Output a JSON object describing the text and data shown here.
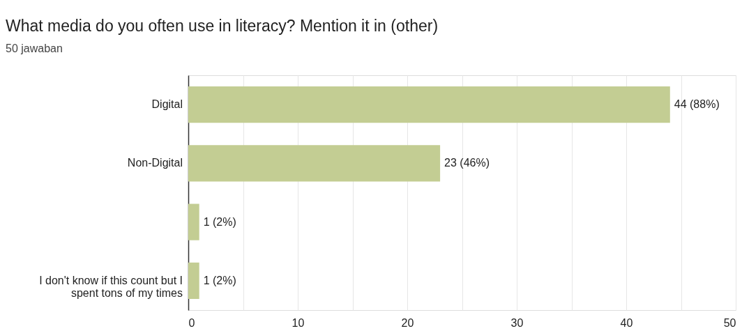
{
  "chart_data": {
    "type": "bar",
    "orientation": "horizontal",
    "title": "What media do you often use in literacy? Mention it in (other)",
    "subtitle": "50 jawaban",
    "categories": [
      "Digital",
      "Non-Digital",
      null,
      "I don't know if this count but I spent tons of my times"
    ],
    "values": [
      44,
      23,
      1,
      1
    ],
    "value_labels": [
      "44 (88%)",
      "23 (46%)",
      "1 (2%)",
      "1 (2%)"
    ],
    "color": "#c3cd93",
    "xlim": [
      0,
      50
    ],
    "xticks": [
      0,
      {
        "value": 5,
        "label": null
      },
      10,
      {
        "value": 15,
        "label": null
      },
      20,
      {
        "value": 25,
        "label": null
      },
      30,
      {
        "value": 35,
        "label": null
      },
      40,
      {
        "value": 45,
        "label": null
      },
      50
    ],
    "grid": "x"
  }
}
